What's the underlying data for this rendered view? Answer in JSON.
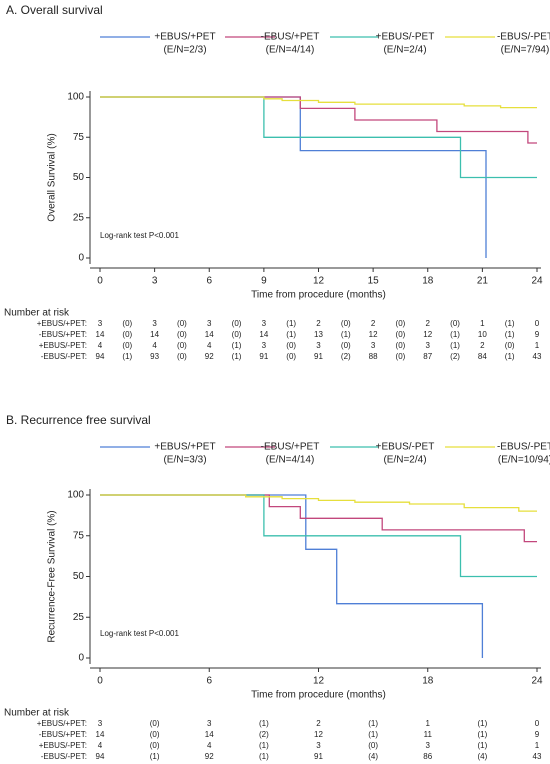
{
  "chart_data": [
    {
      "type": "line",
      "step": true,
      "title": "A. Overall survival",
      "xlabel": "Time from procedure (months)",
      "ylabel": "Overall Survival (%)",
      "annotation": "Log-rank test P<0.001",
      "xlim": [
        0,
        24
      ],
      "xticks": [
        0,
        3,
        6,
        9,
        12,
        15,
        18,
        21,
        24
      ],
      "ylim": [
        0,
        100
      ],
      "yticks": [
        0,
        25,
        50,
        75,
        100
      ],
      "series": [
        {
          "name": "+EBUS/+PET",
          "events": "(E/N=2/3)",
          "color": "#4f7fd6",
          "x": [
            0,
            11,
            11,
            21.2,
            21.2
          ],
          "values": [
            100,
            100,
            66.7,
            66.7,
            0
          ]
        },
        {
          "name": "-EBUS/+PET",
          "events": "(E/N=4/14)",
          "color": "#c2477c",
          "x": [
            0,
            11,
            11,
            14,
            14,
            18.5,
            18.5,
            23.5,
            23.5,
            24
          ],
          "values": [
            100,
            100,
            92.9,
            92.9,
            85.7,
            85.7,
            78.6,
            78.6,
            71.4,
            71.4
          ]
        },
        {
          "name": "+EBUS/-PET",
          "events": "(E/N=2/4)",
          "color": "#3cbfae",
          "x": [
            0,
            9,
            9,
            19.8,
            19.8,
            24
          ],
          "values": [
            100,
            100,
            75,
            75,
            50,
            50
          ]
        },
        {
          "name": "-EBUS/-PET",
          "events": "(E/N=7/94)",
          "color": "#e6df3c",
          "x": [
            0,
            9,
            9,
            10,
            10,
            12,
            12,
            14,
            14,
            20,
            20,
            22,
            22,
            24
          ],
          "values": [
            100,
            100,
            98.9,
            98.9,
            97.8,
            97.8,
            96.7,
            96.7,
            95.6,
            95.6,
            94.5,
            94.5,
            93.4,
            93.4
          ]
        }
      ],
      "risk_table": {
        "title": "Number at risk",
        "rows": [
          {
            "label": "+EBUS/+PET:",
            "cells": [
              "3",
              "(0)",
              "3",
              "(0)",
              "3",
              "(0)",
              "3",
              "(1)",
              "2",
              "(0)",
              "2",
              "(0)",
              "2",
              "(0)",
              "1",
              "(1)",
              "0"
            ]
          },
          {
            "label": "-EBUS/+PET:",
            "cells": [
              "14",
              "(0)",
              "14",
              "(0)",
              "14",
              "(0)",
              "14",
              "(1)",
              "13",
              "(1)",
              "12",
              "(0)",
              "12",
              "(1)",
              "10",
              "(1)",
              "9"
            ]
          },
          {
            "label": "+EBUS/-PET:",
            "cells": [
              "4",
              "(0)",
              "4",
              "(0)",
              "4",
              "(1)",
              "3",
              "(0)",
              "3",
              "(0)",
              "3",
              "(0)",
              "3",
              "(1)",
              "2",
              "(0)",
              "1"
            ]
          },
          {
            "label": "-EBUS/-PET:",
            "cells": [
              "94",
              "(1)",
              "93",
              "(0)",
              "92",
              "(1)",
              "91",
              "(0)",
              "91",
              "(2)",
              "88",
              "(0)",
              "87",
              "(2)",
              "84",
              "(1)",
              "43"
            ]
          }
        ]
      }
    },
    {
      "type": "line",
      "step": true,
      "title": "B. Recurrence free survival",
      "xlabel": "Time from procedure (months)",
      "ylabel": "Recurrence-Free Survival (%)",
      "annotation": "Log-rank test P<0.001",
      "xlim": [
        0,
        24
      ],
      "xticks": [
        0,
        6,
        12,
        18,
        24
      ],
      "ylim": [
        0,
        100
      ],
      "yticks": [
        0,
        25,
        50,
        75,
        100
      ],
      "series": [
        {
          "name": "+EBUS/+PET",
          "events": "(E/N=3/3)",
          "color": "#4f7fd6",
          "x": [
            0,
            11.3,
            11.3,
            13,
            13,
            21,
            21
          ],
          "values": [
            100,
            100,
            66.7,
            66.7,
            33.3,
            33.3,
            0
          ]
        },
        {
          "name": "-EBUS/+PET",
          "events": "(E/N=4/14)",
          "color": "#c2477c",
          "x": [
            0,
            9.3,
            9.3,
            11,
            11,
            15.5,
            15.5,
            23.3,
            23.3,
            24
          ],
          "values": [
            100,
            100,
            92.9,
            92.9,
            85.7,
            85.7,
            78.6,
            78.6,
            71.4,
            71.4
          ]
        },
        {
          "name": "+EBUS/-PET",
          "events": "(E/N=2/4)",
          "color": "#3cbfae",
          "x": [
            0,
            9,
            9,
            19.8,
            19.8,
            24
          ],
          "values": [
            100,
            100,
            75,
            75,
            50,
            50
          ]
        },
        {
          "name": "-EBUS/-PET",
          "events": "(E/N=10/94)",
          "color": "#e6df3c",
          "x": [
            0,
            8,
            8,
            10,
            10,
            12,
            12,
            14,
            14,
            17,
            17,
            20,
            20,
            23,
            23,
            24
          ],
          "values": [
            100,
            100,
            98.9,
            98.9,
            97.8,
            97.8,
            96.7,
            96.7,
            95.6,
            95.6,
            94.5,
            94.5,
            92.3,
            92.3,
            90.1,
            90.1
          ]
        }
      ],
      "risk_table": {
        "title": "Number at risk",
        "rows": [
          {
            "label": "+EBUS/+PET:",
            "cells": [
              "3",
              "(0)",
              "3",
              "(1)",
              "2",
              "(1)",
              "1",
              "(1)",
              "0"
            ]
          },
          {
            "label": "-EBUS/+PET:",
            "cells": [
              "14",
              "(0)",
              "14",
              "(2)",
              "12",
              "(1)",
              "11",
              "(1)",
              "9"
            ]
          },
          {
            "label": "+EBUS/-PET:",
            "cells": [
              "4",
              "(0)",
              "4",
              "(1)",
              "3",
              "(0)",
              "3",
              "(1)",
              "1"
            ]
          },
          {
            "label": "-EBUS/-PET:",
            "cells": [
              "94",
              "(1)",
              "92",
              "(1)",
              "91",
              "(4)",
              "86",
              "(4)",
              "43"
            ]
          }
        ]
      }
    }
  ]
}
